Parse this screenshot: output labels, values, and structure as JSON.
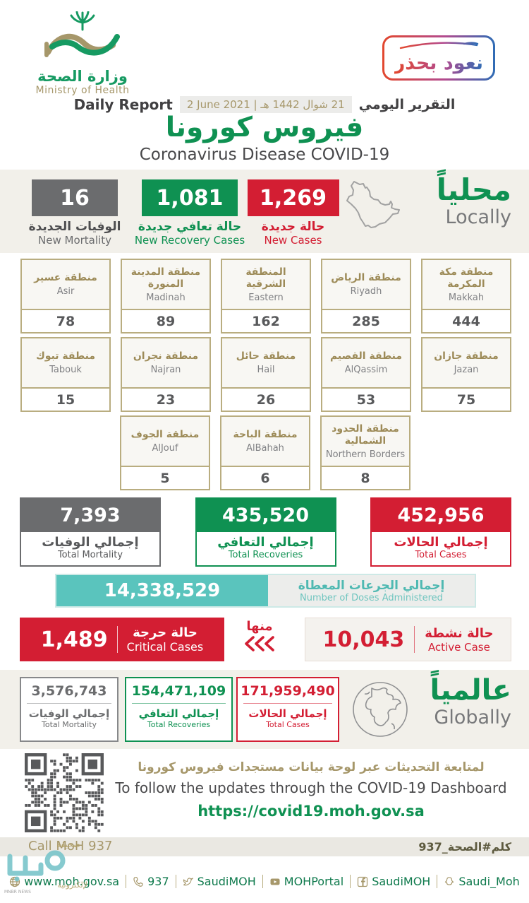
{
  "colors": {
    "green": "#0f9152",
    "red": "#d31e33",
    "gray": "#6b6c6e",
    "teal": "#5ac4bd",
    "khaki": "#a6976a"
  },
  "logo": {
    "ministry_ar": "وزارة الصحة",
    "ministry_en": "Ministry of Health"
  },
  "badge": {
    "text": "نعود بحذر"
  },
  "report": {
    "daily_report_en": "Daily Report",
    "date_en": "2 June 2021",
    "date_sep": "|",
    "date_hijri": "21 شوال 1442 هـ",
    "daily_report_ar": "التقرير اليومي",
    "title_ar": "فيروس كورونا",
    "title_en": "Coronavirus Disease COVID-19"
  },
  "locally": {
    "heading_ar": "محلياً",
    "heading_en": "Locally",
    "new_mortality": {
      "value": "16",
      "label_ar": "الوفيات الجديدة",
      "label_en": "New Mortality"
    },
    "new_recoveries": {
      "value": "1,081",
      "label_ar": "حالة تعافي جديدة",
      "label_en": "New Recovery Cases"
    },
    "new_cases": {
      "value": "1,269",
      "label_ar": "حالة جديدة",
      "label_en": "New Cases"
    }
  },
  "regions": [
    {
      "name_ar": "منطقة مكة المكرمة",
      "name_en": "Makkah",
      "value": "444"
    },
    {
      "name_ar": "منطقة الرياض",
      "name_en": "Riyadh",
      "value": "285"
    },
    {
      "name_ar": "المنطقة الشرقية",
      "name_en": "Eastern",
      "value": "162"
    },
    {
      "name_ar": "منطقة المدينة المنورة",
      "name_en": "Madinah",
      "value": "89"
    },
    {
      "name_ar": "منطقة عسير",
      "name_en": "Asir",
      "value": "78"
    },
    {
      "name_ar": "منطقة جازان",
      "name_en": "Jazan",
      "value": "75"
    },
    {
      "name_ar": "منطقة القصيم",
      "name_en": "AlQassim",
      "value": "53"
    },
    {
      "name_ar": "منطقة حائل",
      "name_en": "Hail",
      "value": "26"
    },
    {
      "name_ar": "منطقة نجران",
      "name_en": "Najran",
      "value": "23"
    },
    {
      "name_ar": "منطقة تبوك",
      "name_en": "Tabouk",
      "value": "15"
    },
    {
      "name_ar": "منطقة الحدود الشمالية",
      "name_en": "Northern Borders",
      "value": "8"
    },
    {
      "name_ar": "منطقة الباحة",
      "name_en": "AlBahah",
      "value": "6"
    },
    {
      "name_ar": "منطقة الجوف",
      "name_en": "AlJouf",
      "value": "5"
    }
  ],
  "totals": {
    "mortality": {
      "value": "7,393",
      "label_ar": "إجمالي الوفيات",
      "label_en": "Total Mortality"
    },
    "recoveries": {
      "value": "435,520",
      "label_ar": "إجمالي التعافي",
      "label_en": "Total Recoveries"
    },
    "cases": {
      "value": "452,956",
      "label_ar": "إجمالي الحالات",
      "label_en": "Total Cases"
    }
  },
  "doses": {
    "value": "14,338,529",
    "label_ar": "إجمالي الجرعات المعطاة",
    "label_en": "Number of Doses Administered"
  },
  "critical": {
    "value": "1,489",
    "label_ar": "حالة حرجة",
    "label_en": "Critical Cases"
  },
  "of_which": "منها",
  "active": {
    "value": "10,043",
    "label_ar": "حالة نشطة",
    "label_en": "Active Case"
  },
  "globally": {
    "heading_ar": "عالمياً",
    "heading_en": "Globally",
    "mortality": {
      "value": "3,576,743",
      "label_ar": "إجمالي الوفيات",
      "label_en": "Total Mortality"
    },
    "recoveries": {
      "value": "154,471,109",
      "label_ar": "إجمالي التعافي",
      "label_en": "Total Recoveries"
    },
    "cases": {
      "value": "171,959,490",
      "label_ar": "إجمالي الحالات",
      "label_en": "Total Cases"
    }
  },
  "dashboard": {
    "text_ar": "لمتابعة التحديثات عبر لوحة بيانات مستجدات فيروس كورونا",
    "text_en": "To follow the updates through the COVID-19 Dashboard",
    "url": "https://covid19.moh.gov.sa"
  },
  "contact": {
    "call": "Call MoH 937",
    "hashtag": "كلم#الصحة_937"
  },
  "footer": {
    "links": [
      {
        "label": "www.moh.gov.sa"
      },
      {
        "label": "937"
      },
      {
        "label": "SaudiMOH"
      },
      {
        "label": "MOHPortal"
      },
      {
        "label": "SaudiMOH"
      },
      {
        "label": "Saudi_Moh"
      }
    ]
  },
  "watermark": {
    "line1": "صحيفة",
    "line2": "لإلكترونية",
    "caption": "MNBR NEWS"
  }
}
